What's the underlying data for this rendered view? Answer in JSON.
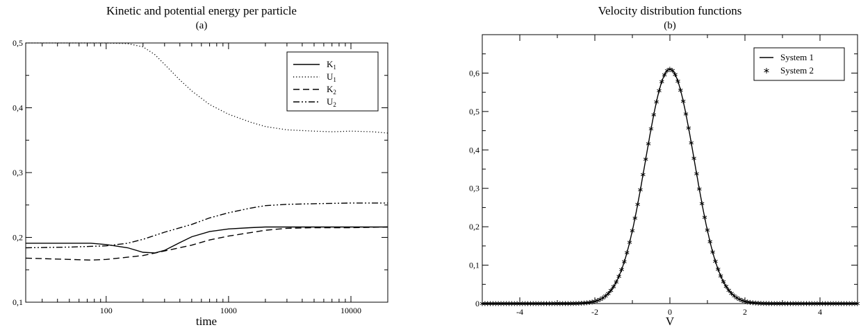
{
  "chart_data": [
    {
      "type": "line",
      "title": "Kinetic and potential energy per particle",
      "subtitle": "(a)",
      "xlabel": "time",
      "ylabel": "",
      "xscale": "log",
      "xlim": [
        22,
        20000
      ],
      "ylim": [
        0.1,
        0.5
      ],
      "xticks": [
        100,
        1000,
        10000
      ],
      "xtick_labels": [
        "100",
        "1000",
        "10000"
      ],
      "yticks": [
        0.1,
        0.2,
        0.3,
        0.4,
        0.5
      ],
      "ytick_labels": [
        "0,1",
        "0,2",
        "0,3",
        "0,4",
        "0,5"
      ],
      "grid": false,
      "legend_position": "top-right",
      "series": [
        {
          "name": "K",
          "subscript": "1",
          "style": "solid",
          "x": [
            22,
            50,
            75,
            100,
            150,
            200,
            250,
            300,
            400,
            500,
            700,
            1000,
            1500,
            2000,
            3000,
            5000,
            10000,
            20000
          ],
          "y": [
            0.191,
            0.191,
            0.191,
            0.189,
            0.184,
            0.177,
            0.176,
            0.18,
            0.192,
            0.201,
            0.209,
            0.213,
            0.215,
            0.216,
            0.216,
            0.216,
            0.216,
            0.216
          ]
        },
        {
          "name": "U",
          "subscript": "1",
          "style": "dotted",
          "x": [
            22,
            50,
            100,
            150,
            200,
            250,
            300,
            400,
            500,
            700,
            1000,
            1500,
            2000,
            3000,
            5000,
            7000,
            10000,
            15000,
            20000
          ],
          "y": [
            0.5,
            0.5,
            0.5,
            0.499,
            0.494,
            0.482,
            0.467,
            0.443,
            0.426,
            0.405,
            0.39,
            0.378,
            0.371,
            0.366,
            0.364,
            0.363,
            0.364,
            0.363,
            0.361
          ]
        },
        {
          "name": "K",
          "subscript": "2",
          "style": "dashed",
          "x": [
            22,
            50,
            75,
            100,
            200,
            300,
            500,
            700,
            1000,
            2000,
            3000,
            5000,
            10000,
            20000
          ],
          "y": [
            0.168,
            0.166,
            0.165,
            0.166,
            0.172,
            0.179,
            0.188,
            0.196,
            0.202,
            0.211,
            0.214,
            0.215,
            0.215,
            0.216
          ]
        },
        {
          "name": "U",
          "subscript": "2",
          "style": "dashdot",
          "x": [
            22,
            50,
            100,
            150,
            200,
            300,
            500,
            700,
            1000,
            1500,
            2000,
            3000,
            5000,
            10000,
            20000
          ],
          "y": [
            0.184,
            0.185,
            0.187,
            0.191,
            0.197,
            0.208,
            0.22,
            0.23,
            0.238,
            0.245,
            0.249,
            0.251,
            0.252,
            0.253,
            0.253
          ]
        }
      ]
    },
    {
      "type": "line",
      "title": "Velocity distribution functions",
      "subtitle": "(b)",
      "xlabel": "V",
      "ylabel": "",
      "xlim": [
        -5,
        5
      ],
      "ylim": [
        0,
        0.7
      ],
      "xticks": [
        -4,
        -2,
        0,
        2,
        4
      ],
      "xtick_labels": [
        "-4",
        "-2",
        "0",
        "2",
        "4"
      ],
      "yticks": [
        0,
        0.1,
        0.2,
        0.3,
        0.4,
        0.5,
        0.6
      ],
      "ytick_labels": [
        "0",
        "0,1",
        "0,2",
        "0,3",
        "0,4",
        "0,5",
        "0,6"
      ],
      "grid": false,
      "legend_position": "top-right",
      "distribution": "gaussian",
      "peak": 0.61,
      "mean": 0,
      "std": 0.655,
      "sample_step": 0.0714,
      "series": [
        {
          "name": "System 1",
          "style": "solid"
        },
        {
          "name": "System 2",
          "style": "asterisk-markers"
        }
      ]
    }
  ]
}
